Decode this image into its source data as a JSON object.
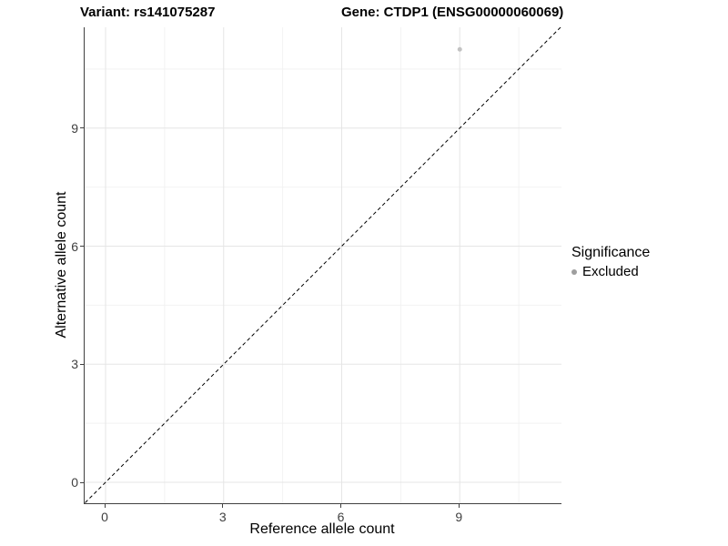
{
  "chart_data": {
    "type": "scatter",
    "title_left": "Variant: rs141075287",
    "title_right": "Gene: CTDP1 (ENSG00000060069)",
    "xlabel": "Reference allele count",
    "ylabel": "Alternative allele count",
    "x_ticks": [
      0,
      3,
      6,
      9
    ],
    "y_ticks": [
      0,
      3,
      6,
      9
    ],
    "x_minor_ticks": [
      1.5,
      4.5,
      7.5,
      10.5
    ],
    "y_minor_ticks": [
      1.5,
      4.5,
      7.5,
      10.5
    ],
    "xlim": [
      -0.55,
      11.55
    ],
    "ylim": [
      -0.55,
      11.55
    ],
    "grid": true,
    "points": [
      {
        "x": 9,
        "y": 11,
        "series": "Excluded"
      }
    ],
    "reference_line": {
      "type": "identity",
      "style": "dashed",
      "color": "#000000"
    },
    "legend": {
      "position": "right",
      "title": "Significance",
      "items": [
        {
          "label": "Excluded",
          "color": "#9e9e9e"
        }
      ]
    },
    "colors": {
      "point": "#c2c2c2",
      "grid_major": "#e5e5e5",
      "grid_minor": "#f2f2f2",
      "axis_line": "#404040",
      "tick_label": "#404040"
    }
  }
}
